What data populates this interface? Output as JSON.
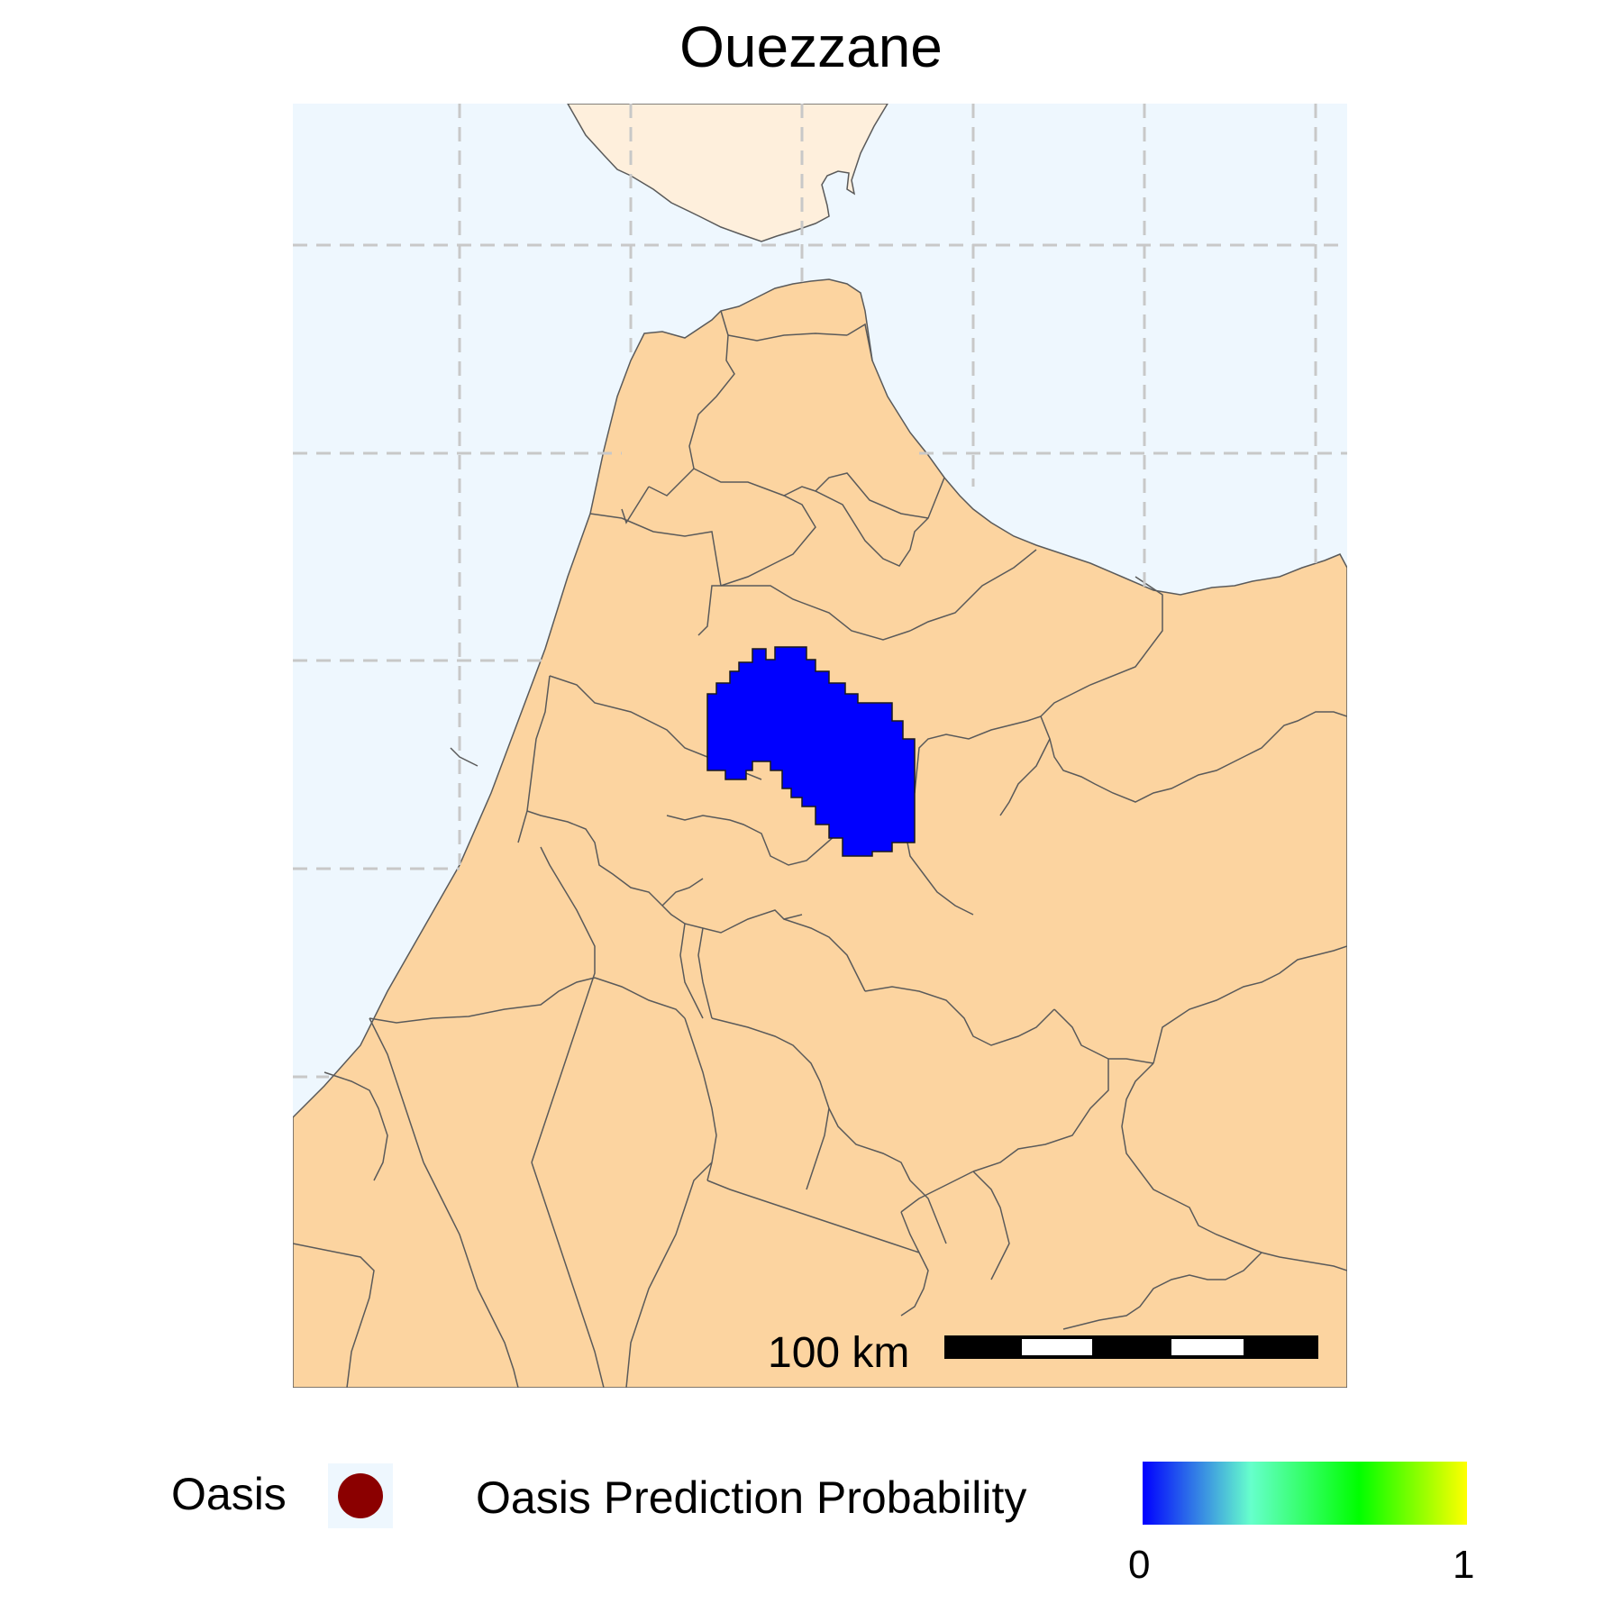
{
  "title": "Ouezzane",
  "map": {
    "sea_color": "#eef7fe",
    "land_color": "#fcd4a0",
    "northern_landmass_color": "#feefdc",
    "boundary_color": "#5a5a5a",
    "highlight_color": "#0000ff",
    "grid_color": "#c8c8c8",
    "grid_style": "dashed"
  },
  "scale_bar": {
    "label": "100 km"
  },
  "legend": {
    "oasis": {
      "label": "Oasis",
      "color": "#8b0000",
      "icon": "circle-marker-icon"
    },
    "probability": {
      "title": "Oasis Prediction Probability",
      "min_label": "0",
      "max_label": "1",
      "gradient": [
        "#0000ff",
        "#66ffcc",
        "#00ff00",
        "#ffff00"
      ]
    }
  }
}
